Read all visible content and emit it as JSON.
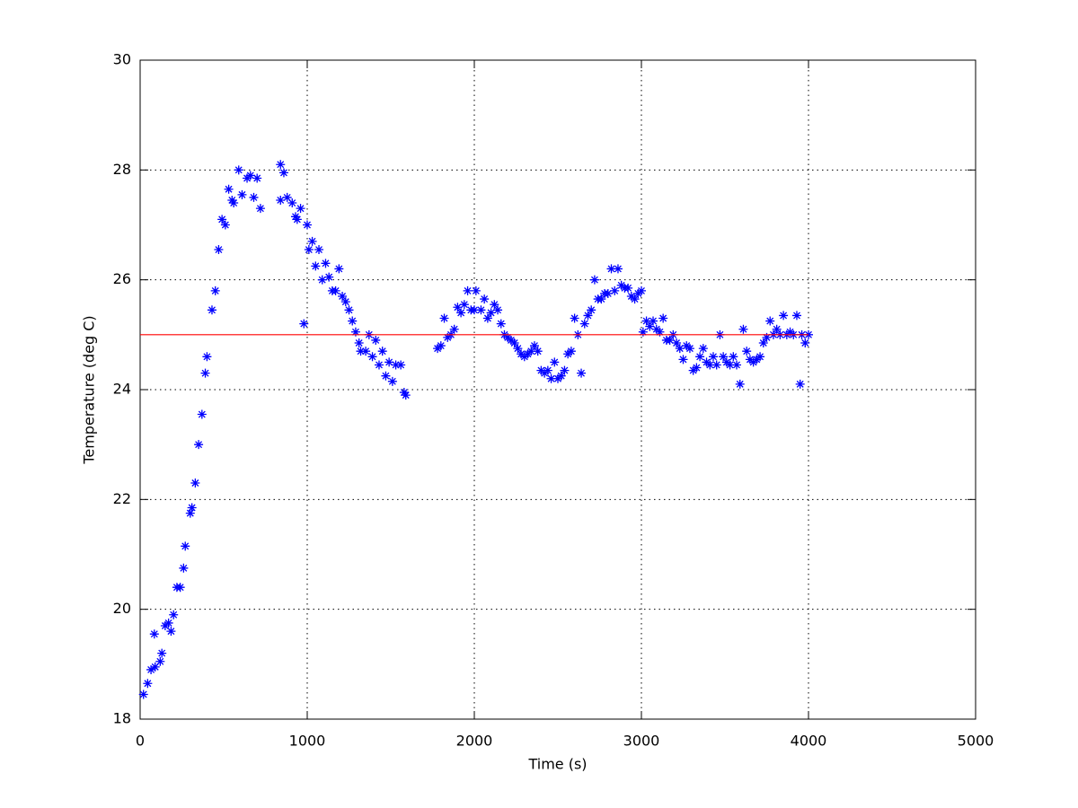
{
  "chart_data": {
    "type": "scatter",
    "xlabel": "Time (s)",
    "ylabel": "Temperature (deg C)",
    "xlim": [
      0,
      5000
    ],
    "ylim": [
      18,
      30
    ],
    "xticks": [
      0,
      1000,
      2000,
      3000,
      4000,
      5000
    ],
    "yticks": [
      18,
      20,
      22,
      24,
      26,
      28,
      30
    ],
    "grid": true,
    "series": [
      {
        "color": "#0000ff",
        "marker": "*",
        "x": [
          20,
          45,
          65,
          90,
          85,
          120,
          130,
          150,
          170,
          185,
          200,
          220,
          240,
          260,
          270,
          300,
          310,
          330,
          350,
          370,
          390,
          400,
          430,
          450,
          470,
          490,
          510,
          530,
          550,
          560,
          590,
          610,
          640,
          660,
          680,
          700,
          720,
          840,
          840,
          860,
          880,
          910,
          930,
          940,
          960,
          980,
          1000,
          1010,
          1030,
          1050,
          1070,
          1090,
          1110,
          1130,
          1150,
          1170,
          1190,
          1210,
          1230,
          1250,
          1270,
          1290,
          1310,
          1320,
          1350,
          1370,
          1390,
          1410,
          1430,
          1450,
          1470,
          1490,
          1510,
          1530,
          1560,
          1580,
          1590,
          1780,
          1800,
          1820,
          1840,
          1860,
          1880,
          1900,
          1920,
          1940,
          1960,
          1980,
          2000,
          2010,
          2040,
          2060,
          2080,
          2100,
          2120,
          2140,
          2160,
          2180,
          2200,
          2220,
          2240,
          2260,
          2280,
          2300,
          2320,
          2340,
          2360,
          2380,
          2400,
          2420,
          2440,
          2460,
          2480,
          2500,
          2520,
          2540,
          2560,
          2580,
          2600,
          2620,
          2640,
          2660,
          2680,
          2700,
          2720,
          2740,
          2760,
          2780,
          2800,
          2820,
          2840,
          2860,
          2880,
          2900,
          2920,
          2940,
          2960,
          2980,
          3000,
          3010,
          3030,
          3050,
          3070,
          3090,
          3110,
          3130,
          3150,
          3170,
          3190,
          3210,
          3230,
          3250,
          3270,
          3290,
          3310,
          3330,
          3350,
          3370,
          3390,
          3410,
          3430,
          3450,
          3470,
          3490,
          3510,
          3530,
          3550,
          3570,
          3590,
          3610,
          3630,
          3650,
          3670,
          3690,
          3710,
          3730,
          3750,
          3770,
          3790,
          3810,
          3830,
          3850,
          3870,
          3890,
          3910,
          3930,
          3950,
          3960,
          3980,
          4000
        ],
        "y": [
          18.45,
          18.65,
          18.9,
          18.95,
          19.55,
          19.05,
          19.2,
          19.7,
          19.75,
          19.6,
          19.9,
          20.4,
          20.4,
          20.75,
          21.15,
          21.75,
          21.85,
          22.3,
          23.0,
          23.55,
          24.3,
          24.6,
          25.45,
          25.8,
          26.55,
          27.1,
          27.0,
          27.65,
          27.45,
          27.4,
          28.0,
          27.55,
          27.85,
          27.9,
          27.5,
          27.85,
          27.3,
          28.1,
          27.45,
          27.95,
          27.5,
          27.4,
          27.15,
          27.1,
          27.3,
          25.2,
          27.0,
          26.55,
          26.7,
          26.25,
          26.55,
          26.0,
          26.3,
          26.05,
          25.8,
          25.8,
          26.2,
          25.7,
          25.6,
          25.45,
          25.25,
          25.05,
          24.85,
          24.7,
          24.7,
          25.0,
          24.6,
          24.9,
          24.45,
          24.7,
          24.25,
          24.5,
          24.15,
          24.45,
          24.45,
          23.95,
          23.9,
          24.75,
          24.8,
          25.3,
          24.95,
          25.0,
          25.1,
          25.5,
          25.4,
          25.55,
          25.8,
          25.45,
          25.45,
          25.8,
          25.45,
          25.65,
          25.3,
          25.4,
          25.55,
          25.45,
          25.2,
          25.0,
          24.95,
          24.9,
          24.85,
          24.75,
          24.65,
          24.6,
          24.65,
          24.7,
          24.8,
          24.7,
          24.35,
          24.3,
          24.35,
          24.2,
          24.5,
          24.2,
          24.25,
          24.35,
          24.65,
          24.7,
          25.3,
          25.0,
          24.3,
          25.2,
          25.35,
          25.45,
          26.0,
          25.65,
          25.65,
          25.75,
          25.75,
          26.2,
          25.8,
          26.2,
          25.9,
          25.85,
          25.85,
          25.7,
          25.65,
          25.75,
          25.8,
          25.05,
          25.25,
          25.15,
          25.25,
          25.1,
          25.05,
          25.3,
          24.9,
          24.9,
          25.0,
          24.85,
          24.75,
          24.55,
          24.8,
          24.75,
          24.35,
          24.4,
          24.6,
          24.75,
          24.5,
          24.45,
          24.6,
          24.45,
          25.0,
          24.6,
          24.5,
          24.45,
          24.6,
          24.45,
          24.1,
          25.1,
          24.7,
          24.55,
          24.5,
          24.55,
          24.6,
          24.85,
          24.95,
          25.25,
          25.0,
          25.1,
          25.0,
          25.35,
          25.0,
          25.05,
          25.0,
          25.35,
          24.1,
          25.0,
          24.85,
          25.0
        ]
      },
      {
        "color": "#ff0000",
        "marker": "line",
        "x": [
          0,
          4000
        ],
        "y": [
          25,
          25
        ]
      }
    ]
  }
}
